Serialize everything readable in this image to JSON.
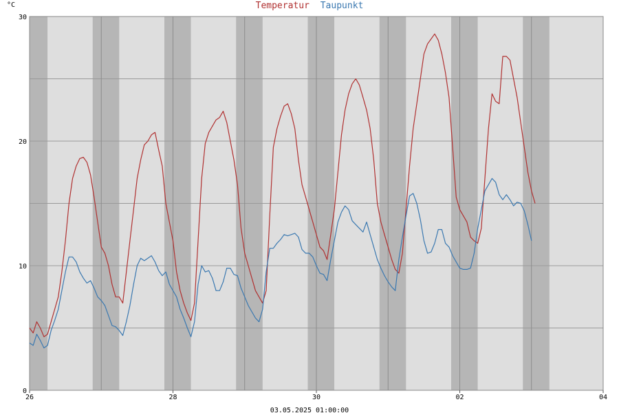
{
  "legend": {
    "temperature": "Temperatur",
    "dewpoint": "Taupunkt"
  },
  "footer": {
    "timestamp": "03.05.2025 01:00:00"
  },
  "colors": {
    "temperature": "#b03030",
    "dewpoint": "#3a78b0",
    "day_band": "#dedede",
    "night_band": "#b6b6b6",
    "grid": "#999999"
  },
  "chart_data": {
    "type": "line",
    "title": "",
    "xlabel": "",
    "ylabel": "°C",
    "x_unit": "days since 26 (local midnight), 04-hour steps",
    "xlim": [
      0,
      8
    ],
    "ylim": [
      0,
      30
    ],
    "yticks": [
      0,
      10,
      20,
      30
    ],
    "ygrid": [
      5,
      10,
      15,
      20,
      25,
      30
    ],
    "xticks": [
      {
        "x": 0,
        "label": "26"
      },
      {
        "x": 2,
        "label": "28"
      },
      {
        "x": 4,
        "label": "30"
      },
      {
        "x": 6,
        "label": "02"
      },
      {
        "x": 8,
        "label": "04"
      }
    ],
    "grid": true,
    "legend_position": "top-center",
    "night_bands": [
      [
        0.0,
        0.25
      ],
      [
        0.88,
        1.25
      ],
      [
        1.88,
        2.25
      ],
      [
        2.88,
        3.25
      ],
      [
        3.88,
        4.25
      ],
      [
        4.88,
        5.25
      ],
      [
        5.88,
        6.25
      ],
      [
        6.88,
        7.25
      ]
    ],
    "series": [
      {
        "name": "Temperatur",
        "points": [
          [
            0.0,
            5.0
          ],
          [
            0.05,
            4.6
          ],
          [
            0.1,
            5.5
          ],
          [
            0.15,
            5.0
          ],
          [
            0.2,
            4.3
          ],
          [
            0.25,
            4.5
          ],
          [
            0.3,
            5.5
          ],
          [
            0.35,
            6.5
          ],
          [
            0.4,
            7.5
          ],
          [
            0.45,
            9.5
          ],
          [
            0.5,
            12.0
          ],
          [
            0.55,
            15.0
          ],
          [
            0.6,
            17.0
          ],
          [
            0.65,
            18.0
          ],
          [
            0.7,
            18.6
          ],
          [
            0.75,
            18.7
          ],
          [
            0.8,
            18.3
          ],
          [
            0.85,
            17.3
          ],
          [
            0.9,
            15.5
          ],
          [
            0.95,
            13.5
          ],
          [
            1.0,
            11.5
          ],
          [
            1.05,
            11.0
          ],
          [
            1.1,
            10.0
          ],
          [
            1.15,
            8.5
          ],
          [
            1.2,
            7.5
          ],
          [
            1.25,
            7.5
          ],
          [
            1.3,
            7.0
          ],
          [
            1.35,
            9.5
          ],
          [
            1.4,
            12.0
          ],
          [
            1.45,
            14.5
          ],
          [
            1.5,
            17.0
          ],
          [
            1.55,
            18.5
          ],
          [
            1.6,
            19.7
          ],
          [
            1.65,
            20.0
          ],
          [
            1.7,
            20.5
          ],
          [
            1.75,
            20.7
          ],
          [
            1.8,
            19.3
          ],
          [
            1.85,
            18.0
          ],
          [
            1.9,
            15.0
          ],
          [
            1.95,
            13.5
          ],
          [
            2.0,
            12.0
          ],
          [
            2.05,
            9.5
          ],
          [
            2.1,
            8.0
          ],
          [
            2.15,
            7.0
          ],
          [
            2.2,
            6.2
          ],
          [
            2.25,
            5.6
          ],
          [
            2.3,
            7.0
          ],
          [
            2.35,
            12.0
          ],
          [
            2.4,
            17.0
          ],
          [
            2.45,
            19.8
          ],
          [
            2.5,
            20.7
          ],
          [
            2.55,
            21.2
          ],
          [
            2.6,
            21.7
          ],
          [
            2.65,
            21.9
          ],
          [
            2.7,
            22.4
          ],
          [
            2.75,
            21.5
          ],
          [
            2.8,
            20.0
          ],
          [
            2.85,
            18.5
          ],
          [
            2.9,
            16.5
          ],
          [
            2.95,
            13.0
          ],
          [
            3.0,
            11.0
          ],
          [
            3.05,
            10.0
          ],
          [
            3.1,
            9.0
          ],
          [
            3.15,
            8.0
          ],
          [
            3.2,
            7.5
          ],
          [
            3.25,
            7.0
          ],
          [
            3.3,
            8.0
          ],
          [
            3.35,
            14.0
          ],
          [
            3.4,
            19.5
          ],
          [
            3.45,
            21.0
          ],
          [
            3.5,
            22.0
          ],
          [
            3.55,
            22.8
          ],
          [
            3.6,
            23.0
          ],
          [
            3.65,
            22.2
          ],
          [
            3.7,
            21.0
          ],
          [
            3.75,
            18.5
          ],
          [
            3.8,
            16.5
          ],
          [
            3.85,
            15.5
          ],
          [
            3.9,
            14.5
          ],
          [
            3.95,
            13.5
          ],
          [
            4.0,
            12.5
          ],
          [
            4.05,
            11.5
          ],
          [
            4.1,
            11.2
          ],
          [
            4.15,
            10.5
          ],
          [
            4.2,
            12.5
          ],
          [
            4.25,
            14.5
          ],
          [
            4.3,
            17.5
          ],
          [
            4.35,
            20.5
          ],
          [
            4.4,
            22.5
          ],
          [
            4.45,
            23.8
          ],
          [
            4.5,
            24.6
          ],
          [
            4.55,
            25.0
          ],
          [
            4.6,
            24.5
          ],
          [
            4.65,
            23.5
          ],
          [
            4.7,
            22.5
          ],
          [
            4.75,
            21.0
          ],
          [
            4.8,
            18.5
          ],
          [
            4.85,
            15.0
          ],
          [
            4.9,
            13.5
          ],
          [
            4.95,
            12.5
          ],
          [
            5.0,
            11.5
          ],
          [
            5.05,
            10.5
          ],
          [
            5.1,
            9.7
          ],
          [
            5.15,
            9.4
          ],
          [
            5.2,
            11.0
          ],
          [
            5.25,
            14.5
          ],
          [
            5.3,
            18.0
          ],
          [
            5.35,
            21.0
          ],
          [
            5.4,
            23.0
          ],
          [
            5.45,
            25.0
          ],
          [
            5.5,
            27.0
          ],
          [
            5.55,
            27.8
          ],
          [
            5.6,
            28.2
          ],
          [
            5.65,
            28.6
          ],
          [
            5.7,
            28.1
          ],
          [
            5.75,
            27.0
          ],
          [
            5.8,
            25.5
          ],
          [
            5.85,
            23.5
          ],
          [
            5.9,
            19.5
          ],
          [
            5.95,
            15.5
          ],
          [
            6.0,
            14.5
          ],
          [
            6.05,
            14.0
          ],
          [
            6.1,
            13.5
          ],
          [
            6.15,
            12.3
          ],
          [
            6.2,
            12.0
          ],
          [
            6.25,
            11.8
          ],
          [
            6.3,
            13.0
          ],
          [
            6.35,
            17.0
          ],
          [
            6.4,
            21.0
          ],
          [
            6.45,
            23.8
          ],
          [
            6.5,
            23.2
          ],
          [
            6.55,
            23.0
          ],
          [
            6.6,
            26.8
          ],
          [
            6.65,
            26.8
          ],
          [
            6.7,
            26.5
          ],
          [
            6.75,
            25.0
          ],
          [
            6.8,
            23.5
          ],
          [
            6.85,
            21.5
          ],
          [
            6.9,
            19.5
          ],
          [
            6.95,
            17.5
          ],
          [
            7.0,
            16.0
          ],
          [
            7.05,
            15.0
          ]
        ]
      },
      {
        "name": "Taupunkt",
        "points": [
          [
            0.0,
            3.8
          ],
          [
            0.05,
            3.6
          ],
          [
            0.1,
            4.5
          ],
          [
            0.15,
            4.0
          ],
          [
            0.2,
            3.4
          ],
          [
            0.25,
            3.6
          ],
          [
            0.3,
            4.8
          ],
          [
            0.35,
            5.6
          ],
          [
            0.4,
            6.5
          ],
          [
            0.45,
            8.0
          ],
          [
            0.5,
            9.5
          ],
          [
            0.55,
            10.7
          ],
          [
            0.6,
            10.7
          ],
          [
            0.65,
            10.3
          ],
          [
            0.7,
            9.5
          ],
          [
            0.75,
            9.0
          ],
          [
            0.8,
            8.6
          ],
          [
            0.85,
            8.8
          ],
          [
            0.9,
            8.2
          ],
          [
            0.95,
            7.5
          ],
          [
            1.0,
            7.2
          ],
          [
            1.05,
            6.8
          ],
          [
            1.1,
            6.0
          ],
          [
            1.15,
            5.2
          ],
          [
            1.2,
            5.1
          ],
          [
            1.25,
            4.8
          ],
          [
            1.3,
            4.4
          ],
          [
            1.35,
            5.5
          ],
          [
            1.4,
            6.8
          ],
          [
            1.45,
            8.5
          ],
          [
            1.5,
            10.0
          ],
          [
            1.55,
            10.6
          ],
          [
            1.6,
            10.4
          ],
          [
            1.65,
            10.6
          ],
          [
            1.7,
            10.8
          ],
          [
            1.75,
            10.3
          ],
          [
            1.8,
            9.6
          ],
          [
            1.85,
            9.2
          ],
          [
            1.9,
            9.5
          ],
          [
            1.95,
            8.5
          ],
          [
            2.0,
            8.0
          ],
          [
            2.05,
            7.5
          ],
          [
            2.1,
            6.5
          ],
          [
            2.15,
            5.8
          ],
          [
            2.2,
            5.0
          ],
          [
            2.25,
            4.3
          ],
          [
            2.3,
            5.5
          ],
          [
            2.35,
            8.5
          ],
          [
            2.4,
            10.0
          ],
          [
            2.45,
            9.5
          ],
          [
            2.5,
            9.6
          ],
          [
            2.55,
            9.0
          ],
          [
            2.6,
            8.0
          ],
          [
            2.65,
            8.0
          ],
          [
            2.7,
            8.7
          ],
          [
            2.75,
            9.8
          ],
          [
            2.8,
            9.8
          ],
          [
            2.85,
            9.3
          ],
          [
            2.9,
            9.2
          ],
          [
            2.95,
            8.2
          ],
          [
            3.0,
            7.5
          ],
          [
            3.05,
            6.8
          ],
          [
            3.1,
            6.3
          ],
          [
            3.15,
            5.8
          ],
          [
            3.2,
            5.5
          ],
          [
            3.25,
            6.5
          ],
          [
            3.3,
            9.5
          ],
          [
            3.35,
            11.4
          ],
          [
            3.4,
            11.4
          ],
          [
            3.45,
            11.8
          ],
          [
            3.5,
            12.1
          ],
          [
            3.55,
            12.5
          ],
          [
            3.6,
            12.4
          ],
          [
            3.65,
            12.5
          ],
          [
            3.7,
            12.6
          ],
          [
            3.75,
            12.3
          ],
          [
            3.8,
            11.3
          ],
          [
            3.85,
            11.0
          ],
          [
            3.9,
            11.0
          ],
          [
            3.95,
            10.7
          ],
          [
            4.0,
            10.0
          ],
          [
            4.05,
            9.4
          ],
          [
            4.1,
            9.3
          ],
          [
            4.15,
            8.8
          ],
          [
            4.2,
            10.5
          ],
          [
            4.25,
            12.0
          ],
          [
            4.3,
            13.5
          ],
          [
            4.35,
            14.3
          ],
          [
            4.4,
            14.8
          ],
          [
            4.45,
            14.5
          ],
          [
            4.5,
            13.6
          ],
          [
            4.55,
            13.3
          ],
          [
            4.6,
            13.0
          ],
          [
            4.65,
            12.7
          ],
          [
            4.7,
            13.5
          ],
          [
            4.75,
            12.5
          ],
          [
            4.8,
            11.5
          ],
          [
            4.85,
            10.5
          ],
          [
            4.9,
            9.8
          ],
          [
            4.95,
            9.2
          ],
          [
            5.0,
            8.7
          ],
          [
            5.05,
            8.3
          ],
          [
            5.1,
            8.0
          ],
          [
            5.15,
            10.5
          ],
          [
            5.2,
            12.3
          ],
          [
            5.25,
            14.0
          ],
          [
            5.3,
            15.6
          ],
          [
            5.35,
            15.8
          ],
          [
            5.4,
            15.0
          ],
          [
            5.45,
            13.7
          ],
          [
            5.5,
            12.0
          ],
          [
            5.55,
            11.0
          ],
          [
            5.6,
            11.1
          ],
          [
            5.65,
            11.8
          ],
          [
            5.7,
            12.9
          ],
          [
            5.75,
            12.9
          ],
          [
            5.8,
            11.8
          ],
          [
            5.85,
            11.5
          ],
          [
            5.9,
            10.8
          ],
          [
            5.95,
            10.3
          ],
          [
            6.0,
            9.8
          ],
          [
            6.05,
            9.7
          ],
          [
            6.1,
            9.7
          ],
          [
            6.15,
            9.8
          ],
          [
            6.2,
            11.0
          ],
          [
            6.25,
            13.0
          ],
          [
            6.3,
            14.5
          ],
          [
            6.35,
            16.0
          ],
          [
            6.4,
            16.5
          ],
          [
            6.45,
            17.0
          ],
          [
            6.5,
            16.7
          ],
          [
            6.55,
            15.7
          ],
          [
            6.6,
            15.3
          ],
          [
            6.65,
            15.7
          ],
          [
            6.7,
            15.3
          ],
          [
            6.75,
            14.8
          ],
          [
            6.8,
            15.1
          ],
          [
            6.85,
            15.0
          ],
          [
            6.9,
            14.4
          ],
          [
            6.95,
            13.3
          ],
          [
            7.0,
            12.0
          ]
        ]
      }
    ]
  }
}
